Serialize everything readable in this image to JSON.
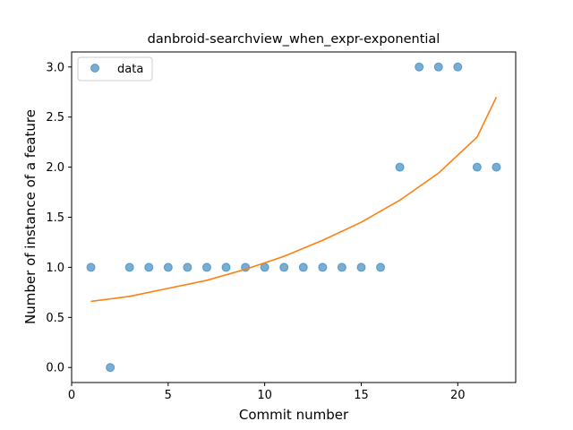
{
  "chart_data": {
    "type": "scatter",
    "title": "danbroid-searchview_when_expr-exponential",
    "xlabel": "Commit number",
    "ylabel": "Number of instance of a feature",
    "xlim": [
      0,
      23
    ],
    "ylim": [
      -0.15,
      3.15
    ],
    "xticks": [
      0,
      5,
      10,
      15,
      20
    ],
    "yticks": [
      0.0,
      0.5,
      1.0,
      1.5,
      2.0,
      2.5,
      3.0
    ],
    "xtick_labels": [
      "0",
      "5",
      "10",
      "15",
      "20"
    ],
    "ytick_labels": [
      "0.0",
      "0.5",
      "1.0",
      "1.5",
      "2.0",
      "2.5",
      "3.0"
    ],
    "grid": false,
    "legend": {
      "position": "upper-left",
      "entries": [
        "data"
      ]
    },
    "series": [
      {
        "name": "data",
        "kind": "scatter",
        "color": "#1f77b4",
        "x": [
          1,
          2,
          3,
          4,
          5,
          6,
          7,
          8,
          9,
          10,
          11,
          12,
          13,
          14,
          15,
          16,
          17,
          18,
          19,
          20,
          21,
          22
        ],
        "y": [
          1,
          0,
          1,
          1,
          1,
          1,
          1,
          1,
          1,
          1,
          1,
          1,
          1,
          1,
          1,
          1,
          2,
          3,
          3,
          3,
          2,
          2
        ]
      },
      {
        "kind": "line",
        "color": "#ff7f0e",
        "x": [
          1,
          3,
          5,
          7,
          9,
          11,
          13,
          15,
          17,
          19,
          21,
          22
        ],
        "y": [
          0.66,
          0.71,
          0.79,
          0.87,
          0.98,
          1.11,
          1.27,
          1.45,
          1.67,
          1.94,
          2.3,
          2.7
        ]
      }
    ]
  }
}
